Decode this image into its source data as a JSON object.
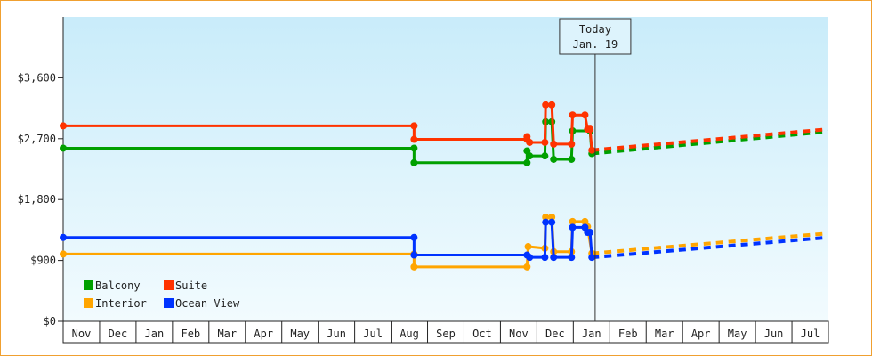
{
  "chart_data": {
    "type": "line",
    "title": "",
    "xlabel": "",
    "ylabel": "",
    "x_unit": "months since start of Nov (0 = start of first Nov)",
    "x_tick_labels": [
      "Nov",
      "Dec",
      "Jan",
      "Feb",
      "Mar",
      "Apr",
      "May",
      "Jun",
      "Jul",
      "Aug",
      "Sep",
      "Oct",
      "Nov",
      "Dec",
      "Jan",
      "Feb",
      "Mar",
      "Apr",
      "May",
      "Jun",
      "Jul"
    ],
    "xlim": [
      0,
      21
    ],
    "ylim": [
      0,
      4500
    ],
    "y_ticks": [
      0,
      900,
      1800,
      2700,
      3600
    ],
    "y_tick_labels": [
      "$0",
      "$900",
      "$1,800",
      "$2,700",
      "$3,600"
    ],
    "grid": false,
    "legend_position": "bottom-left",
    "today": {
      "x": 14.6,
      "label_line1": "Today",
      "label_line2": "Jan. 19"
    },
    "series": [
      {
        "name": "Balcony",
        "color": "#00a000",
        "points": [
          [
            0,
            2560
          ],
          [
            9.63,
            2560
          ],
          [
            9.63,
            2345
          ],
          [
            12.73,
            2345
          ],
          [
            12.73,
            2520
          ],
          [
            12.8,
            2445
          ],
          [
            13.22,
            2445
          ],
          [
            13.24,
            2950
          ],
          [
            13.41,
            2950
          ],
          [
            13.46,
            2395
          ],
          [
            13.95,
            2395
          ],
          [
            13.98,
            2815
          ],
          [
            14.46,
            2815
          ],
          [
            14.51,
            2480
          ]
        ],
        "forecast": [
          [
            14.51,
            2480
          ],
          [
            20.98,
            2805
          ]
        ]
      },
      {
        "name": "Suite",
        "color": "#ff3300",
        "points": [
          [
            0,
            2890
          ],
          [
            9.63,
            2890
          ],
          [
            9.63,
            2690
          ],
          [
            12.73,
            2690
          ],
          [
            12.73,
            2730
          ],
          [
            12.8,
            2645
          ],
          [
            13.22,
            2645
          ],
          [
            13.24,
            3200
          ],
          [
            13.41,
            3200
          ],
          [
            13.46,
            2620
          ],
          [
            13.95,
            2620
          ],
          [
            13.98,
            3050
          ],
          [
            14.32,
            3050
          ],
          [
            14.39,
            2840
          ],
          [
            14.46,
            2840
          ],
          [
            14.51,
            2530
          ]
        ],
        "forecast": [
          [
            14.51,
            2530
          ],
          [
            20.98,
            2840
          ]
        ]
      },
      {
        "name": "Interior",
        "color": "#ffa500",
        "points": [
          [
            0,
            995
          ],
          [
            9.63,
            995
          ],
          [
            9.63,
            805
          ],
          [
            12.73,
            805
          ],
          [
            12.76,
            1105
          ],
          [
            13.22,
            1080
          ],
          [
            13.24,
            1540
          ],
          [
            13.41,
            1540
          ],
          [
            13.46,
            1030
          ],
          [
            13.95,
            1030
          ],
          [
            13.98,
            1475
          ],
          [
            14.32,
            1475
          ],
          [
            14.39,
            1400
          ],
          [
            14.51,
            1005
          ]
        ],
        "forecast": [
          [
            14.51,
            1005
          ],
          [
            20.98,
            1300
          ]
        ]
      },
      {
        "name": "Ocean View",
        "color": "#0033ff",
        "points": [
          [
            0,
            1240
          ],
          [
            9.63,
            1240
          ],
          [
            9.63,
            980
          ],
          [
            12.73,
            980
          ],
          [
            12.8,
            945
          ],
          [
            13.22,
            945
          ],
          [
            13.24,
            1465
          ],
          [
            13.41,
            1465
          ],
          [
            13.46,
            945
          ],
          [
            13.95,
            945
          ],
          [
            13.98,
            1390
          ],
          [
            14.32,
            1390
          ],
          [
            14.39,
            1315
          ],
          [
            14.46,
            1315
          ],
          [
            14.51,
            945
          ]
        ],
        "forecast": [
          [
            14.51,
            945
          ],
          [
            20.98,
            1240
          ]
        ]
      }
    ]
  }
}
